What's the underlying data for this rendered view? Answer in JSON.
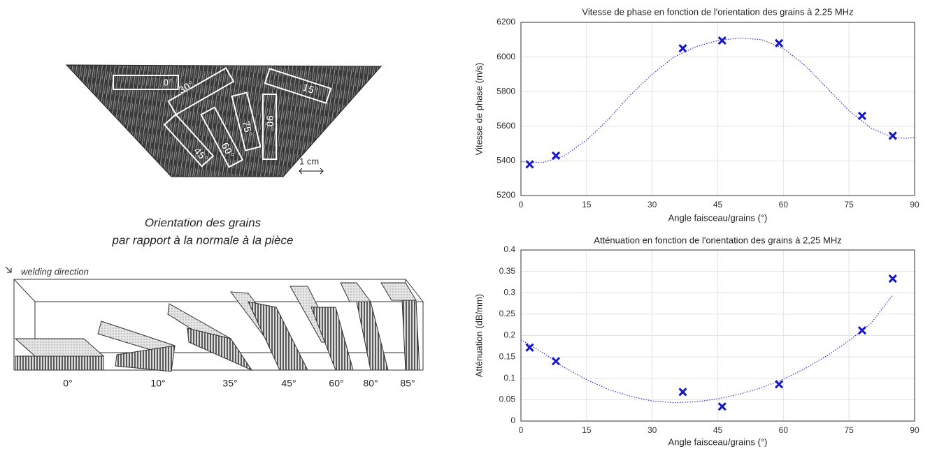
{
  "figure": {
    "micrograph_labels": [
      "0°",
      "30°",
      "15°",
      "45°",
      "60°",
      "75°",
      "90°"
    ],
    "scale_label": "1 cm",
    "caption": [
      "Orientation des grains",
      "par rapport à la normale à la pièce"
    ],
    "diagram_caption": "welding direction",
    "diagram_labels": [
      "0°",
      "10°",
      "35°",
      "45°",
      "60°",
      "80°",
      "85°"
    ]
  },
  "chart_data": [
    {
      "type": "scatter",
      "title": "Vitesse de phase en fonction de l'orientation des grains à 2.25 MHz",
      "xlabel": "Angle faisceau/grains (°)",
      "ylabel": "Vitesse de phase (m/s)",
      "xlim": [
        0,
        90
      ],
      "xticks": [
        0,
        15,
        30,
        45,
        60,
        75,
        90
      ],
      "ylim": [
        5200,
        6200
      ],
      "yticks": [
        5200,
        5400,
        5600,
        5800,
        6000,
        6200
      ],
      "grid": true,
      "series": [
        {
          "color": "#1414c8",
          "marker": "x",
          "x": [
            2,
            8,
            37,
            46,
            59,
            78,
            85
          ],
          "values": [
            5380,
            5430,
            6050,
            6095,
            6080,
            5660,
            5545
          ]
        },
        {
          "color": "#3030d0",
          "line": "dotted",
          "x": [
            0,
            5,
            10,
            15,
            20,
            25,
            30,
            35,
            40,
            45,
            50,
            55,
            60,
            65,
            70,
            75,
            80,
            85,
            88,
            90
          ],
          "values": [
            5395,
            5390,
            5430,
            5520,
            5640,
            5780,
            5900,
            6000,
            6060,
            6095,
            6110,
            6100,
            6050,
            5950,
            5820,
            5690,
            5590,
            5535,
            5530,
            5535
          ]
        }
      ]
    },
    {
      "type": "scatter",
      "title": "Atténuation en fonction de l'orientation des grains à 2,25 MHz",
      "xlabel": "Angle faisceau/grains (°)",
      "ylabel": "Atténuation (dB/mm)",
      "xlim": [
        0,
        90
      ],
      "xticks": [
        0,
        15,
        30,
        45,
        60,
        75,
        90
      ],
      "ylim": [
        0,
        0.4
      ],
      "yticks": [
        0,
        0.05,
        0.1,
        0.15,
        0.2,
        0.25,
        0.3,
        0.35,
        0.4
      ],
      "grid": true,
      "series": [
        {
          "color": "#1414c8",
          "marker": "x",
          "x": [
            2,
            8,
            37,
            46,
            59,
            78,
            85
          ],
          "values": [
            0.172,
            0.14,
            0.068,
            0.034,
            0.086,
            0.212,
            0.333
          ]
        },
        {
          "color": "#3030d0",
          "line": "dotted",
          "x": [
            0,
            5,
            10,
            15,
            20,
            25,
            30,
            35,
            40,
            45,
            50,
            55,
            60,
            65,
            70,
            75,
            80,
            85
          ],
          "values": [
            0.19,
            0.16,
            0.125,
            0.097,
            0.074,
            0.058,
            0.047,
            0.043,
            0.045,
            0.052,
            0.063,
            0.078,
            0.098,
            0.123,
            0.153,
            0.188,
            0.228,
            0.295
          ]
        }
      ]
    }
  ]
}
